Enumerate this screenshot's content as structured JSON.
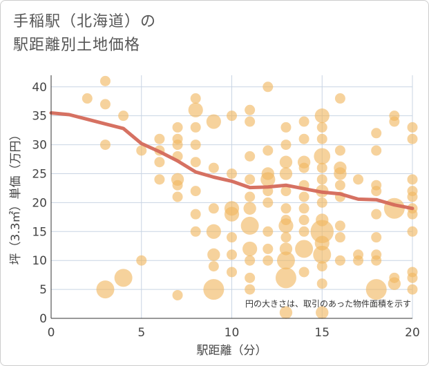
{
  "chart_data": {
    "type": "scatter",
    "title_line1": "手稲駅（北海道）の",
    "title_line2": "駅距離別土地価格",
    "xlabel": "駅距離（分）",
    "ylabel": "坪（3.3㎡）単価（万円）",
    "xlim": [
      0,
      20
    ],
    "ylim": [
      0,
      42
    ],
    "x_ticks": [
      "0",
      "5",
      "10",
      "15",
      "20"
    ],
    "y_ticks": [
      "0",
      "5",
      "10",
      "15",
      "20",
      "25",
      "30",
      "35",
      "40"
    ],
    "note": "円の大きさは、取引のあった物件面積を示す",
    "colors": {
      "bubble": "#f0b660",
      "line": "#d4695a",
      "grid": "#c8d4e3"
    },
    "trend_line": [
      {
        "x": 0,
        "y": 35.5
      },
      {
        "x": 1,
        "y": 35.2
      },
      {
        "x": 2,
        "y": 34.4
      },
      {
        "x": 3,
        "y": 33.6
      },
      {
        "x": 4,
        "y": 32.8
      },
      {
        "x": 5,
        "y": 30.2
      },
      {
        "x": 6,
        "y": 28.8
      },
      {
        "x": 7,
        "y": 27.2
      },
      {
        "x": 8,
        "y": 25.3
      },
      {
        "x": 9,
        "y": 24.4
      },
      {
        "x": 10,
        "y": 23.7
      },
      {
        "x": 11,
        "y": 22.6
      },
      {
        "x": 12,
        "y": 22.7
      },
      {
        "x": 13,
        "y": 23.0
      },
      {
        "x": 14,
        "y": 22.4
      },
      {
        "x": 15,
        "y": 21.8
      },
      {
        "x": 16,
        "y": 21.5
      },
      {
        "x": 17,
        "y": 20.6
      },
      {
        "x": 18,
        "y": 20.5
      },
      {
        "x": 19,
        "y": 19.6
      },
      {
        "x": 20,
        "y": 19.0
      }
    ],
    "points": [
      {
        "x": 2,
        "y": 38,
        "s": 1
      },
      {
        "x": 3,
        "y": 41,
        "s": 1
      },
      {
        "x": 3,
        "y": 37,
        "s": 1
      },
      {
        "x": 3,
        "y": 30,
        "s": 1
      },
      {
        "x": 3,
        "y": 5,
        "s": 3
      },
      {
        "x": 4,
        "y": 35,
        "s": 1
      },
      {
        "x": 4,
        "y": 7,
        "s": 3
      },
      {
        "x": 5,
        "y": 29,
        "s": 1
      },
      {
        "x": 5,
        "y": 10,
        "s": 1
      },
      {
        "x": 6,
        "y": 31,
        "s": 1
      },
      {
        "x": 6,
        "y": 29,
        "s": 1
      },
      {
        "x": 6,
        "y": 27,
        "s": 1
      },
      {
        "x": 6,
        "y": 24,
        "s": 1
      },
      {
        "x": 7,
        "y": 33,
        "s": 1
      },
      {
        "x": 7,
        "y": 31,
        "s": 1
      },
      {
        "x": 7,
        "y": 30,
        "s": 1
      },
      {
        "x": 7,
        "y": 28,
        "s": 1
      },
      {
        "x": 7,
        "y": 24,
        "s": 1.5
      },
      {
        "x": 7,
        "y": 23,
        "s": 1
      },
      {
        "x": 7,
        "y": 21,
        "s": 1
      },
      {
        "x": 7,
        "y": 4,
        "s": 1
      },
      {
        "x": 8,
        "y": 38,
        "s": 1
      },
      {
        "x": 8,
        "y": 36,
        "s": 2
      },
      {
        "x": 8,
        "y": 33,
        "s": 1
      },
      {
        "x": 8,
        "y": 30,
        "s": 1
      },
      {
        "x": 8,
        "y": 27,
        "s": 1
      },
      {
        "x": 8,
        "y": 22,
        "s": 1
      },
      {
        "x": 8,
        "y": 18,
        "s": 1
      },
      {
        "x": 8,
        "y": 15,
        "s": 1
      },
      {
        "x": 9,
        "y": 34,
        "s": 2
      },
      {
        "x": 9,
        "y": 26,
        "s": 1
      },
      {
        "x": 9,
        "y": 19,
        "s": 1
      },
      {
        "x": 9,
        "y": 15,
        "s": 2
      },
      {
        "x": 9,
        "y": 11,
        "s": 1.5
      },
      {
        "x": 9,
        "y": 9,
        "s": 1
      },
      {
        "x": 9,
        "y": 5,
        "s": 4
      },
      {
        "x": 10,
        "y": 35,
        "s": 1
      },
      {
        "x": 10,
        "y": 25,
        "s": 1
      },
      {
        "x": 10,
        "y": 19,
        "s": 2
      },
      {
        "x": 10,
        "y": 18,
        "s": 2
      },
      {
        "x": 10,
        "y": 14,
        "s": 1
      },
      {
        "x": 10,
        "y": 11,
        "s": 1
      },
      {
        "x": 10,
        "y": 8,
        "s": 1
      },
      {
        "x": 11,
        "y": 36,
        "s": 1
      },
      {
        "x": 11,
        "y": 34,
        "s": 1
      },
      {
        "x": 11,
        "y": 28,
        "s": 1
      },
      {
        "x": 11,
        "y": 24,
        "s": 1
      },
      {
        "x": 11,
        "y": 21,
        "s": 1
      },
      {
        "x": 11,
        "y": 19,
        "s": 1.5
      },
      {
        "x": 11,
        "y": 16,
        "s": 3
      },
      {
        "x": 11,
        "y": 12,
        "s": 2
      },
      {
        "x": 11,
        "y": 10,
        "s": 1
      },
      {
        "x": 11,
        "y": 7,
        "s": 1
      },
      {
        "x": 11,
        "y": 5,
        "s": 1
      },
      {
        "x": 12,
        "y": 40,
        "s": 1
      },
      {
        "x": 12,
        "y": 29,
        "s": 1
      },
      {
        "x": 12,
        "y": 25,
        "s": 1.5
      },
      {
        "x": 12,
        "y": 24,
        "s": 2
      },
      {
        "x": 12,
        "y": 22,
        "s": 1
      },
      {
        "x": 12,
        "y": 20,
        "s": 1
      },
      {
        "x": 12,
        "y": 15,
        "s": 1
      },
      {
        "x": 12,
        "y": 12,
        "s": 1
      },
      {
        "x": 12,
        "y": 10,
        "s": 1
      },
      {
        "x": 13,
        "y": 33,
        "s": 1
      },
      {
        "x": 13,
        "y": 30,
        "s": 1
      },
      {
        "x": 13,
        "y": 27,
        "s": 1.5
      },
      {
        "x": 13,
        "y": 25,
        "s": 1.5
      },
      {
        "x": 13,
        "y": 22,
        "s": 1
      },
      {
        "x": 13,
        "y": 19,
        "s": 1
      },
      {
        "x": 13,
        "y": 17,
        "s": 1
      },
      {
        "x": 13,
        "y": 16,
        "s": 2
      },
      {
        "x": 13,
        "y": 14,
        "s": 1
      },
      {
        "x": 13,
        "y": 12,
        "s": 1.5
      },
      {
        "x": 13,
        "y": 10,
        "s": 3
      },
      {
        "x": 13,
        "y": 7,
        "s": 4
      },
      {
        "x": 13,
        "y": 1,
        "s": 1.5
      },
      {
        "x": 14,
        "y": 34,
        "s": 1
      },
      {
        "x": 14,
        "y": 31,
        "s": 1
      },
      {
        "x": 14,
        "y": 27,
        "s": 1.5
      },
      {
        "x": 14,
        "y": 26,
        "s": 1
      },
      {
        "x": 14,
        "y": 23,
        "s": 1
      },
      {
        "x": 14,
        "y": 21,
        "s": 1
      },
      {
        "x": 14,
        "y": 19,
        "s": 1
      },
      {
        "x": 14,
        "y": 17,
        "s": 1
      },
      {
        "x": 14,
        "y": 15,
        "s": 1
      },
      {
        "x": 14,
        "y": 12,
        "s": 3
      },
      {
        "x": 14,
        "y": 8,
        "s": 1
      },
      {
        "x": 15,
        "y": 35,
        "s": 2
      },
      {
        "x": 15,
        "y": 33,
        "s": 1
      },
      {
        "x": 15,
        "y": 31,
        "s": 1
      },
      {
        "x": 15,
        "y": 28,
        "s": 2.5
      },
      {
        "x": 15,
        "y": 26,
        "s": 1
      },
      {
        "x": 15,
        "y": 24,
        "s": 1
      },
      {
        "x": 15,
        "y": 22,
        "s": 1.5
      },
      {
        "x": 15,
        "y": 20,
        "s": 1
      },
      {
        "x": 15,
        "y": 17,
        "s": 1.5
      },
      {
        "x": 15,
        "y": 15,
        "s": 5
      },
      {
        "x": 15,
        "y": 13,
        "s": 2
      },
      {
        "x": 15,
        "y": 11,
        "s": 3
      },
      {
        "x": 15,
        "y": 9,
        "s": 1
      },
      {
        "x": 15,
        "y": 6,
        "s": 1
      },
      {
        "x": 15,
        "y": 1,
        "s": 1.5
      },
      {
        "x": 16,
        "y": 38,
        "s": 1
      },
      {
        "x": 16,
        "y": 29,
        "s": 1
      },
      {
        "x": 16,
        "y": 26,
        "s": 1.5
      },
      {
        "x": 16,
        "y": 25,
        "s": 1.5
      },
      {
        "x": 16,
        "y": 23,
        "s": 1
      },
      {
        "x": 16,
        "y": 21,
        "s": 1
      },
      {
        "x": 16,
        "y": 16,
        "s": 1
      },
      {
        "x": 16,
        "y": 14,
        "s": 1
      },
      {
        "x": 16,
        "y": 10,
        "s": 1
      },
      {
        "x": 17,
        "y": 24,
        "s": 1
      },
      {
        "x": 17,
        "y": 11,
        "s": 1
      },
      {
        "x": 17,
        "y": 10,
        "s": 1
      },
      {
        "x": 18,
        "y": 32,
        "s": 1
      },
      {
        "x": 18,
        "y": 29,
        "s": 1
      },
      {
        "x": 18,
        "y": 23,
        "s": 1
      },
      {
        "x": 18,
        "y": 22,
        "s": 1
      },
      {
        "x": 18,
        "y": 18,
        "s": 1
      },
      {
        "x": 18,
        "y": 14,
        "s": 1
      },
      {
        "x": 18,
        "y": 11,
        "s": 1
      },
      {
        "x": 18,
        "y": 10,
        "s": 1
      },
      {
        "x": 18,
        "y": 5,
        "s": 4
      },
      {
        "x": 19,
        "y": 35,
        "s": 1
      },
      {
        "x": 19,
        "y": 34,
        "s": 1
      },
      {
        "x": 19,
        "y": 19,
        "s": 4
      },
      {
        "x": 19,
        "y": 7,
        "s": 1
      },
      {
        "x": 19,
        "y": 6,
        "s": 1.5
      },
      {
        "x": 20,
        "y": 33,
        "s": 1
      },
      {
        "x": 20,
        "y": 31,
        "s": 1
      },
      {
        "x": 20,
        "y": 24,
        "s": 1
      },
      {
        "x": 20,
        "y": 22,
        "s": 1
      },
      {
        "x": 20,
        "y": 21,
        "s": 1
      },
      {
        "x": 20,
        "y": 19,
        "s": 1
      },
      {
        "x": 20,
        "y": 18,
        "s": 1
      },
      {
        "x": 20,
        "y": 15,
        "s": 1
      },
      {
        "x": 20,
        "y": 8,
        "s": 1
      },
      {
        "x": 20,
        "y": 7,
        "s": 1
      },
      {
        "x": 20,
        "y": 5,
        "s": 1
      }
    ]
  }
}
